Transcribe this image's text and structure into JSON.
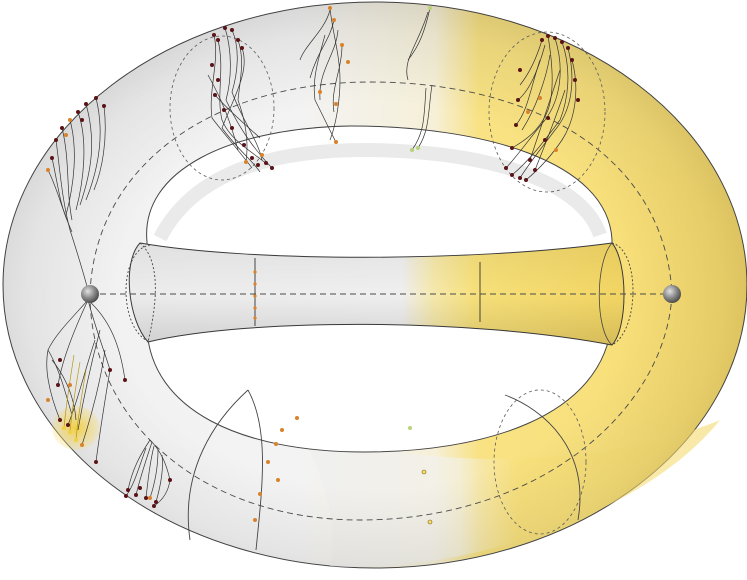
{
  "diagram": {
    "colors": {
      "background": "#ffffff",
      "surface_light": "#f4f4f4",
      "surface_mid": "#dcdcdc",
      "surface_shadow": "#c2c2c2",
      "highlight": "#f7df6e",
      "highlight_deep": "#e7c84a",
      "outline": "#3a3a3a",
      "guide_dash": "#4a4a4a",
      "node_dark": "#5a1418",
      "node_orange": "#d9822b",
      "node_green": "#b9d37a",
      "sphere": "#8a8a8a"
    },
    "elements": {
      "torus": "torus-surface",
      "inner_tube": "central-tube",
      "poles": [
        "left-pole-sphere",
        "right-pole-sphere"
      ],
      "trees": [
        "top-left-tree",
        "top-center-tree",
        "top-right-tree",
        "left-upper-tree",
        "left-lower-tree",
        "bottom-left-tree"
      ]
    }
  }
}
